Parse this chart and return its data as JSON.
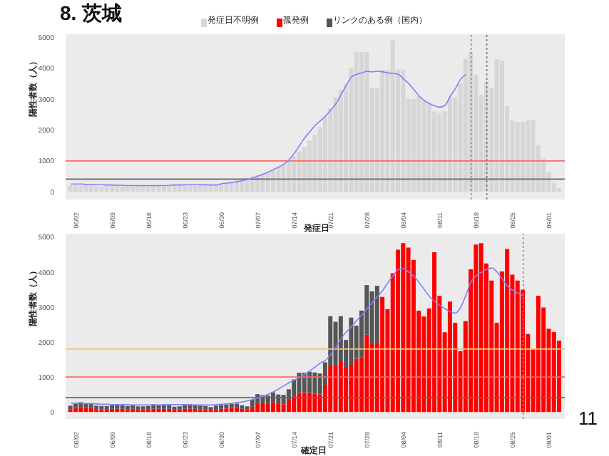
{
  "chart_data": [
    {
      "type": "bar",
      "title": "8. 茨城",
      "xlabel": "発症日",
      "ylabel": "陽性者数（人）",
      "legend": "top",
      "x": [
        "--06-01",
        "--06-02",
        "--06-03",
        "--06-04",
        "--06-05",
        "--06-06",
        "--06-07",
        "--06-08",
        "--06-09",
        "--06-10",
        "--06-11",
        "--06-12",
        "--06-13",
        "--06-14",
        "--06-15",
        "--06-16",
        "--06-17",
        "--06-18",
        "--06-19",
        "--06-20",
        "--06-21",
        "--06-22",
        "--06-23",
        "--06-24",
        "--06-25",
        "--06-26",
        "--06-27",
        "--06-28",
        "--06-29",
        "--06-30",
        "--07-01",
        "--07-02",
        "--07-03",
        "--07-04",
        "--07-05",
        "--07-06",
        "--07-07",
        "--07-08",
        "--07-09",
        "--07-10",
        "--07-11",
        "--07-12",
        "--07-13",
        "--07-14",
        "--07-15",
        "--07-16",
        "--07-17",
        "--07-18",
        "--07-19",
        "--07-20",
        "--07-21",
        "--07-22",
        "--07-23",
        "--07-24",
        "--07-25",
        "--07-26",
        "--07-27",
        "--07-28",
        "--07-29",
        "--07-30",
        "--07-31",
        "--08-01",
        "--08-02",
        "--08-03",
        "--08-04",
        "--08-05",
        "--08-06",
        "--08-07",
        "--08-08",
        "--08-09",
        "--08-10",
        "--08-11",
        "--08-12",
        "--08-13",
        "--08-14",
        "--08-15",
        "--08-16",
        "--08-17",
        "--08-18",
        "--08-19",
        "--08-20",
        "--08-21",
        "--08-22",
        "--08-23",
        "--08-24",
        "--08-25",
        "--08-26",
        "--08-27",
        "--08-28",
        "--08-29",
        "--08-30",
        "--08-31",
        "--09-01",
        "--09-02",
        "--09-03"
      ],
      "xlim": [
        "--05-31",
        "--09-04"
      ],
      "xticks": [
        {
          "value": "--06-02",
          "label": "06/02"
        },
        {
          "value": "--06-09",
          "label": "06/09"
        },
        {
          "value": "--06-16",
          "label": "06/16"
        },
        {
          "value": "--06-23",
          "label": "06/23"
        },
        {
          "value": "--06-30",
          "label": "06/30"
        },
        {
          "value": "--07-07",
          "label": "07/07"
        },
        {
          "value": "--07-14",
          "label": "07/14"
        },
        {
          "value": "--07-21",
          "label": "07/21"
        },
        {
          "value": "--07-28",
          "label": "07/28"
        },
        {
          "value": "--08-04",
          "label": "08/04"
        },
        {
          "value": "--08-11",
          "label": "08/11"
        },
        {
          "value": "--08-18",
          "label": "08/18"
        },
        {
          "value": "--08-25",
          "label": "08/25"
        },
        {
          "value": "--09-01",
          "label": "09/01"
        }
      ],
      "ylim": [
        -250,
        5100
      ],
      "yticks": [
        0,
        1000,
        2000,
        3000,
        4000,
        5000
      ],
      "ref_lines": [
        {
          "axis": "y",
          "value": 1000,
          "color": "#ff6666"
        },
        {
          "axis": "y",
          "value": 410,
          "color": "#666666"
        },
        {
          "axis": "x",
          "value": "--08-17",
          "color": "#e06666",
          "line_style": "dotted"
        },
        {
          "axis": "x",
          "value": "--08-20",
          "color": "#777777",
          "line_style": "dotted"
        }
      ],
      "series": [
        {
          "name": "発症日不明例",
          "color": "#d6d6d6",
          "values": [
            200,
            210,
            190,
            230,
            200,
            180,
            170,
            190,
            210,
            230,
            200,
            180,
            170,
            190,
            200,
            210,
            220,
            190,
            180,
            200,
            230,
            250,
            220,
            200,
            190,
            210,
            230,
            220,
            240,
            250,
            280,
            320,
            360,
            400,
            450,
            500,
            530,
            580,
            640,
            700,
            780,
            880,
            1000,
            1150,
            1300,
            1450,
            1650,
            1850,
            2100,
            2400,
            2700,
            3060,
            3300,
            3500,
            4000,
            4530,
            4530,
            4530,
            3350,
            3350,
            3940,
            3940,
            4900,
            3950,
            3950,
            3000,
            3000,
            3100,
            2950,
            2900,
            2600,
            2550,
            2600,
            3060,
            3060,
            3500,
            4300,
            4530,
            3790,
            3130,
            3570,
            3350,
            4300,
            4240,
            2770,
            2300,
            2260,
            2260,
            2300,
            2330,
            1520,
            1070,
            630,
            300,
            120
          ]
        },
        {
          "type": "line",
          "color": "#8080ff",
          "values": [
            250,
            250,
            250,
            240,
            240,
            230,
            230,
            220,
            220,
            210,
            210,
            200,
            200,
            200,
            200,
            200,
            200,
            200,
            200,
            210,
            220,
            220,
            230,
            230,
            230,
            230,
            230,
            220,
            220,
            260,
            280,
            300,
            330,
            360,
            400,
            450,
            510,
            570,
            640,
            720,
            800,
            900,
            1040,
            1250,
            1500,
            1750,
            1950,
            2150,
            2300,
            2450,
            2650,
            2850,
            3150,
            3450,
            3720,
            3800,
            3850,
            3900,
            3880,
            3900,
            3880,
            3850,
            3830,
            3800,
            3650,
            3500,
            3300,
            3100,
            2950,
            2850,
            2780,
            2740,
            2800,
            3100,
            3350,
            3650,
            3800,
            null,
            null,
            null,
            null,
            null,
            null,
            null,
            null,
            null,
            null,
            null,
            null,
            null,
            null,
            null,
            null,
            null,
            null
          ]
        }
      ]
    },
    {
      "type": "bar",
      "xlabel": "確定日",
      "ylabel": "陽性者数（人）",
      "legend": "top",
      "stacked": true,
      "annotations": [
        "11"
      ],
      "x": [
        "--06-01",
        "--06-02",
        "--06-03",
        "--06-04",
        "--06-05",
        "--06-06",
        "--06-07",
        "--06-08",
        "--06-09",
        "--06-10",
        "--06-11",
        "--06-12",
        "--06-13",
        "--06-14",
        "--06-15",
        "--06-16",
        "--06-17",
        "--06-18",
        "--06-19",
        "--06-20",
        "--06-21",
        "--06-22",
        "--06-23",
        "--06-24",
        "--06-25",
        "--06-26",
        "--06-27",
        "--06-28",
        "--06-29",
        "--06-30",
        "--07-01",
        "--07-02",
        "--07-03",
        "--07-04",
        "--07-05",
        "--07-06",
        "--07-07",
        "--07-08",
        "--07-09",
        "--07-10",
        "--07-11",
        "--07-12",
        "--07-13",
        "--07-14",
        "--07-15",
        "--07-16",
        "--07-17",
        "--07-18",
        "--07-19",
        "--07-20",
        "--07-21",
        "--07-22",
        "--07-23",
        "--07-24",
        "--07-25",
        "--07-26",
        "--07-27",
        "--07-28",
        "--07-29",
        "--07-30",
        "--07-31",
        "--08-01",
        "--08-02",
        "--08-03",
        "--08-04",
        "--08-05",
        "--08-06",
        "--08-07",
        "--08-08",
        "--08-09",
        "--08-10",
        "--08-11",
        "--08-12",
        "--08-13",
        "--08-14",
        "--08-15",
        "--08-16",
        "--08-17",
        "--08-18",
        "--08-19",
        "--08-20",
        "--08-21",
        "--08-22",
        "--08-23",
        "--08-24",
        "--08-25",
        "--08-26",
        "--08-27",
        "--08-28",
        "--08-29",
        "--08-30",
        "--08-31",
        "--09-01",
        "--09-02",
        "--09-03"
      ],
      "xlim": [
        "--05-31",
        "--09-04"
      ],
      "xticks": [
        {
          "value": "--06-02",
          "label": "06/02"
        },
        {
          "value": "--06-09",
          "label": "06/09"
        },
        {
          "value": "--06-16",
          "label": "06/16"
        },
        {
          "value": "--06-23",
          "label": "06/23"
        },
        {
          "value": "--06-30",
          "label": "06/30"
        },
        {
          "value": "--07-07",
          "label": "07/07"
        },
        {
          "value": "--07-14",
          "label": "07/14"
        },
        {
          "value": "--07-21",
          "label": "07/21"
        },
        {
          "value": "--07-28",
          "label": "07/28"
        },
        {
          "value": "--08-04",
          "label": "08/04"
        },
        {
          "value": "--08-11",
          "label": "08/11"
        },
        {
          "value": "--08-18",
          "label": "08/18"
        },
        {
          "value": "--08-25",
          "label": "08/25"
        },
        {
          "value": "--09-01",
          "label": "09/01"
        }
      ],
      "ylim": [
        -200,
        5100
      ],
      "yticks": [
        0,
        1000,
        2000,
        3000,
        4000,
        5000
      ],
      "ref_lines": [
        {
          "axis": "y",
          "value": 1800,
          "color": "#f5c66b"
        },
        {
          "axis": "y",
          "value": 1000,
          "color": "#ff6666"
        },
        {
          "axis": "y",
          "value": 410,
          "color": "#666666"
        },
        {
          "axis": "x",
          "value": "--08-27",
          "color": "#e06666",
          "line_style": "dotted"
        }
      ],
      "series": [
        {
          "name": "孤発例",
          "color": "#ff0000",
          "values": [
            80,
            120,
            130,
            110,
            110,
            80,
            80,
            80,
            90,
            100,
            90,
            80,
            90,
            80,
            80,
            80,
            100,
            90,
            90,
            90,
            70,
            70,
            90,
            100,
            90,
            80,
            80,
            60,
            80,
            90,
            100,
            110,
            120,
            90,
            70,
            150,
            230,
            250,
            230,
            280,
            230,
            220,
            330,
            450,
            540,
            560,
            540,
            520,
            500,
            780,
            1350,
            1310,
            1450,
            1290,
            1350,
            1520,
            1570,
            2210,
            1960,
            1960,
            3290,
            2940,
            3970,
            4640,
            4830,
            4700,
            4350,
            2900,
            2730,
            2960,
            4570,
            3320,
            2280,
            3160,
            2550,
            1740,
            2600,
            4080,
            4790,
            4830,
            4250,
            3760,
            2550,
            4020,
            4660,
            3930,
            3760,
            3500,
            2230,
            1800,
            3320,
            2990,
            2380,
            2290,
            2040
          ]
        },
        {
          "name": "リンクのある例（国内）",
          "color": "#555555",
          "values": [
            100,
            120,
            150,
            130,
            120,
            100,
            90,
            90,
            100,
            110,
            100,
            90,
            100,
            80,
            80,
            90,
            120,
            110,
            100,
            110,
            80,
            90,
            110,
            120,
            110,
            100,
            90,
            80,
            100,
            110,
            110,
            120,
            120,
            100,
            90,
            200,
            280,
            230,
            240,
            280,
            270,
            270,
            320,
            480,
            580,
            560,
            610,
            610,
            600,
            640,
            1390,
            1270,
            1290,
            770,
            1350,
            950,
            1330,
            1420,
            1490,
            1650,
            null,
            null,
            null,
            null,
            null,
            null,
            null,
            null,
            null,
            null,
            null,
            null,
            null,
            null,
            null,
            null,
            null,
            null,
            null,
            null,
            null,
            null,
            null,
            null,
            null,
            null,
            null,
            null,
            null,
            null,
            null,
            null,
            null,
            null,
            null
          ]
        },
        {
          "type": "line",
          "color": "#8080ff",
          "values": [
            250,
            250,
            250,
            240,
            240,
            230,
            220,
            220,
            210,
            210,
            210,
            210,
            200,
            200,
            200,
            200,
            200,
            200,
            210,
            210,
            210,
            210,
            210,
            200,
            200,
            200,
            200,
            200,
            210,
            220,
            230,
            250,
            270,
            290,
            320,
            360,
            400,
            450,
            510,
            580,
            660,
            750,
            840,
            910,
            990,
            1080,
            1180,
            1290,
            1400,
            1480,
            1650,
            1850,
            2100,
            2290,
            2450,
            2620,
            2780,
            2960,
            3130,
            3300,
            3480,
            3700,
            3900,
            4080,
            4100,
            4000,
            3880,
            3700,
            3500,
            3300,
            3160,
            3050,
            2950,
            2870,
            2830,
            3000,
            3350,
            3730,
            3900,
            4000,
            4080,
            4120,
            4000,
            3800,
            3600,
            3480,
            3400,
            3320,
            null,
            null,
            null,
            null,
            null,
            null,
            null
          ]
        }
      ]
    }
  ]
}
